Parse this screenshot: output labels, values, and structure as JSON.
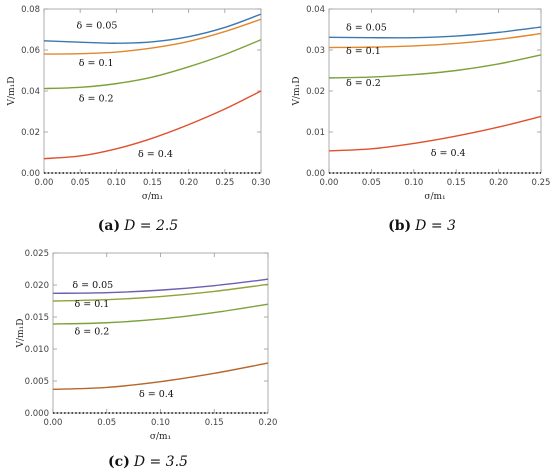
{
  "chart_data": [
    {
      "type": "line",
      "caption_tag": "(a)",
      "caption_text": "D = 2.5",
      "ylabel": "V/m₁D",
      "xlabel": "σ/m₁",
      "xlim": [
        0,
        0.3
      ],
      "ylim": [
        0,
        0.08
      ],
      "xticks": [
        "0.00",
        "0.05",
        "0.10",
        "0.15",
        "0.20",
        "0.25",
        "0.30"
      ],
      "yticks": [
        "0.00",
        "0.02",
        "0.04",
        "0.06",
        "0.08"
      ],
      "x": [
        0,
        0.05,
        0.1,
        0.15,
        0.2,
        0.25,
        0.3
      ],
      "series": [
        {
          "label": "δ = 0.05",
          "color": "#3b78b0",
          "values": [
            0.0645,
            0.0638,
            0.0633,
            0.064,
            0.0665,
            0.071,
            0.0775
          ],
          "label_x": 0.045,
          "label_y": 0.0705
        },
        {
          "label": "δ = 0.1",
          "color": "#e3872b",
          "values": [
            0.058,
            0.0582,
            0.059,
            0.061,
            0.0642,
            0.069,
            0.075
          ],
          "label_x": 0.048,
          "label_y": 0.0523
        },
        {
          "label": "δ = 0.2",
          "color": "#7ba23a",
          "values": [
            0.0412,
            0.0418,
            0.0436,
            0.0468,
            0.0518,
            0.0578,
            0.065
          ],
          "label_x": 0.048,
          "label_y": 0.0348
        },
        {
          "label": "δ = 0.4",
          "color": "#e0502c",
          "values": [
            0.007,
            0.0083,
            0.0118,
            0.017,
            0.0236,
            0.0312,
            0.04
          ],
          "label_x": 0.13,
          "label_y": 0.0078
        }
      ]
    },
    {
      "type": "line",
      "caption_tag": "(b)",
      "caption_text": "D = 3",
      "ylabel": "V/m₁D",
      "xlabel": "σ/m₁",
      "xlim": [
        0,
        0.25
      ],
      "ylim": [
        0,
        0.04
      ],
      "xticks": [
        "0.00",
        "0.05",
        "0.10",
        "0.15",
        "0.20",
        "0.25"
      ],
      "yticks": [
        "0.00",
        "0.01",
        "0.02",
        "0.03",
        "0.04"
      ],
      "x": [
        0,
        0.05,
        0.1,
        0.15,
        0.2,
        0.25
      ],
      "series": [
        {
          "label": "δ = 0.05",
          "color": "#3b78b0",
          "values": [
            0.0331,
            0.033,
            0.033,
            0.0334,
            0.0343,
            0.0356
          ],
          "label_x": 0.02,
          "label_y": 0.0347
        },
        {
          "label": "δ = 0.1",
          "color": "#e3872b",
          "values": [
            0.0306,
            0.0307,
            0.031,
            0.0316,
            0.0326,
            0.034
          ],
          "label_x": 0.02,
          "label_y": 0.029
        },
        {
          "label": "δ = 0.2",
          "color": "#7ba23a",
          "values": [
            0.0232,
            0.0234,
            0.024,
            0.025,
            0.0266,
            0.0288
          ],
          "label_x": 0.02,
          "label_y": 0.0212
        },
        {
          "label": "δ = 0.4",
          "color": "#e0502c",
          "values": [
            0.0054,
            0.0059,
            0.0072,
            0.009,
            0.0112,
            0.0138
          ],
          "label_x": 0.12,
          "label_y": 0.0042
        }
      ]
    },
    {
      "type": "line",
      "caption_tag": "(c)",
      "caption_text": "D = 3.5",
      "ylabel": "V/m₁D",
      "xlabel": "σ/m₁",
      "xlim": [
        0,
        0.2
      ],
      "ylim": [
        0,
        0.025
      ],
      "xticks": [
        "0.00",
        "0.05",
        "0.10",
        "0.15",
        "0.20"
      ],
      "yticks": [
        "0.000",
        "0.005",
        "0.010",
        "0.015",
        "0.020",
        "0.025"
      ],
      "x": [
        0,
        0.05,
        0.1,
        0.15,
        0.2
      ],
      "series": [
        {
          "label": "δ = 0.05",
          "color": "#6a5fb0",
          "values": [
            0.0187,
            0.0188,
            0.0192,
            0.0199,
            0.0209
          ],
          "label_x": 0.018,
          "label_y": 0.0195
        },
        {
          "label": "δ = 0.1",
          "color": "#8fa33a",
          "values": [
            0.0175,
            0.0177,
            0.0182,
            0.019,
            0.0201
          ],
          "label_x": 0.02,
          "label_y": 0.0166
        },
        {
          "label": "δ = 0.2",
          "color": "#7ba23a",
          "values": [
            0.0139,
            0.0141,
            0.0147,
            0.0157,
            0.017
          ],
          "label_x": 0.02,
          "label_y": 0.0123
        },
        {
          "label": "δ = 0.4",
          "color": "#b8662a",
          "values": [
            0.0037,
            0.004,
            0.0049,
            0.0062,
            0.0078
          ],
          "label_x": 0.08,
          "label_y": 0.0025
        }
      ]
    }
  ]
}
